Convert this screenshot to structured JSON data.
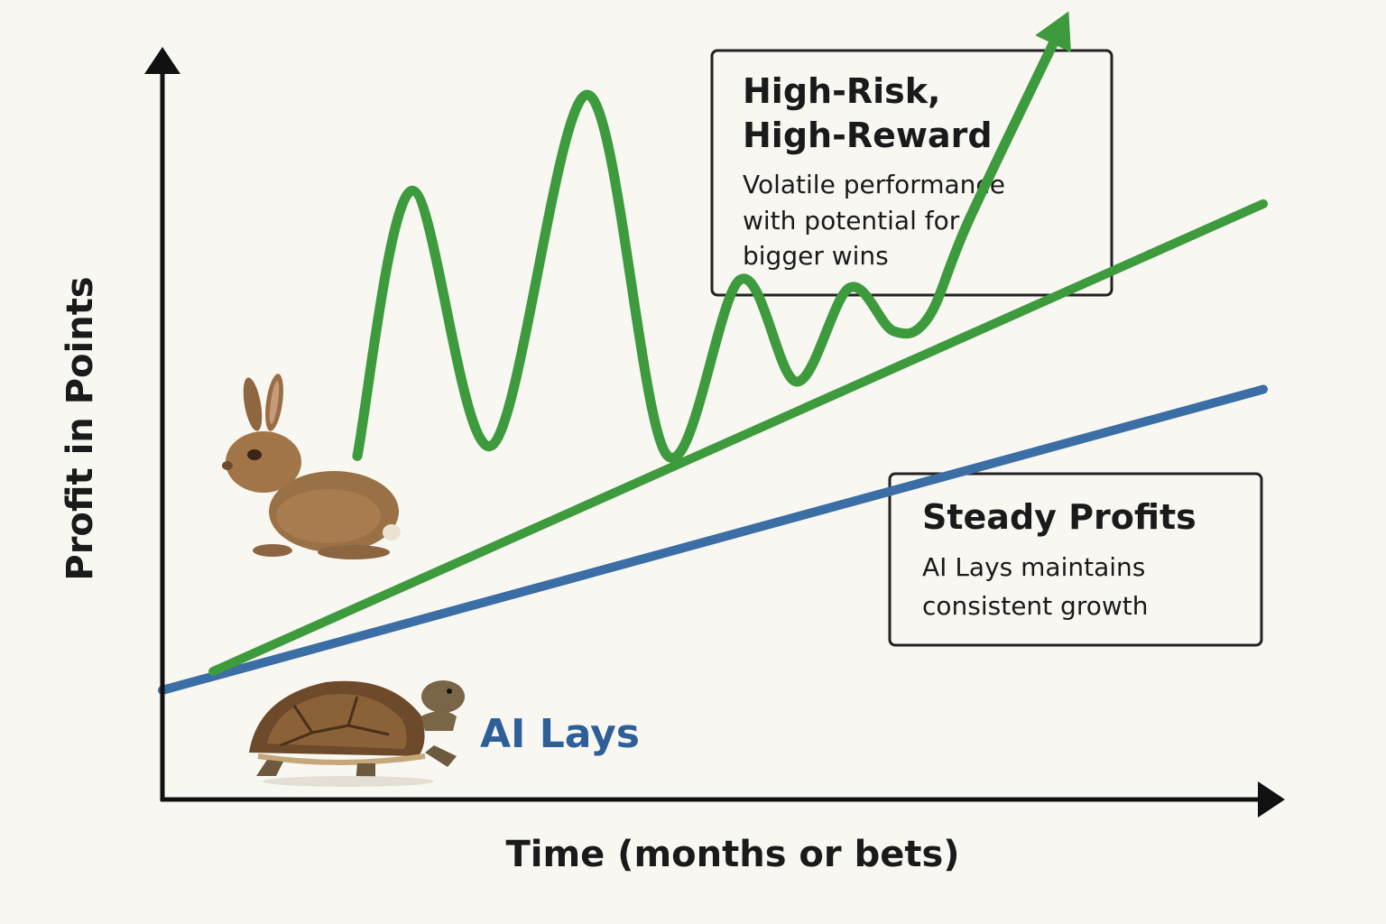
{
  "chart_data": {
    "type": "line",
    "title": "",
    "xlabel": "Time (months or bets)",
    "ylabel": "Profit in Points",
    "xlim": [
      0,
      100
    ],
    "ylim": [
      0,
      100
    ],
    "ticks": "none",
    "grid": false,
    "series": [
      {
        "name": "AI Lays",
        "color": "#3a6ea5",
        "x": [
          0,
          100
        ],
        "y": [
          15.6,
          58.9
        ]
      },
      {
        "name": "",
        "color": "#3d9a3d",
        "x": [
          4.6,
          100
        ],
        "y": [
          18.3,
          85.6
        ]
      },
      {
        "name": "",
        "color": "#3d9a3d",
        "x": [
          17.7,
          22.7,
          29.9,
          38.6,
          45.8,
          52.5,
          57.6,
          62.4,
          66.4,
          69.6,
          73.3,
          81.9
        ],
        "y": [
          49.3,
          87.5,
          50.8,
          101.3,
          49.5,
          74.7,
          60.0,
          73.5,
          67.3,
          69.3,
          83.4,
          111.9
        ]
      }
    ],
    "annotations": [
      {
        "title_lines": [
          "High-Risk,",
          "High-Reward"
        ],
        "body_lines": [
          "Volatile performance",
          "with potential for",
          "bigger wins"
        ]
      },
      {
        "title_lines": [
          "Steady Profits"
        ],
        "body_lines": [
          "AI Lays maintains",
          "consistent growth"
        ]
      }
    ],
    "icons": [
      "rabbit-icon",
      "tortoise-icon"
    ]
  }
}
